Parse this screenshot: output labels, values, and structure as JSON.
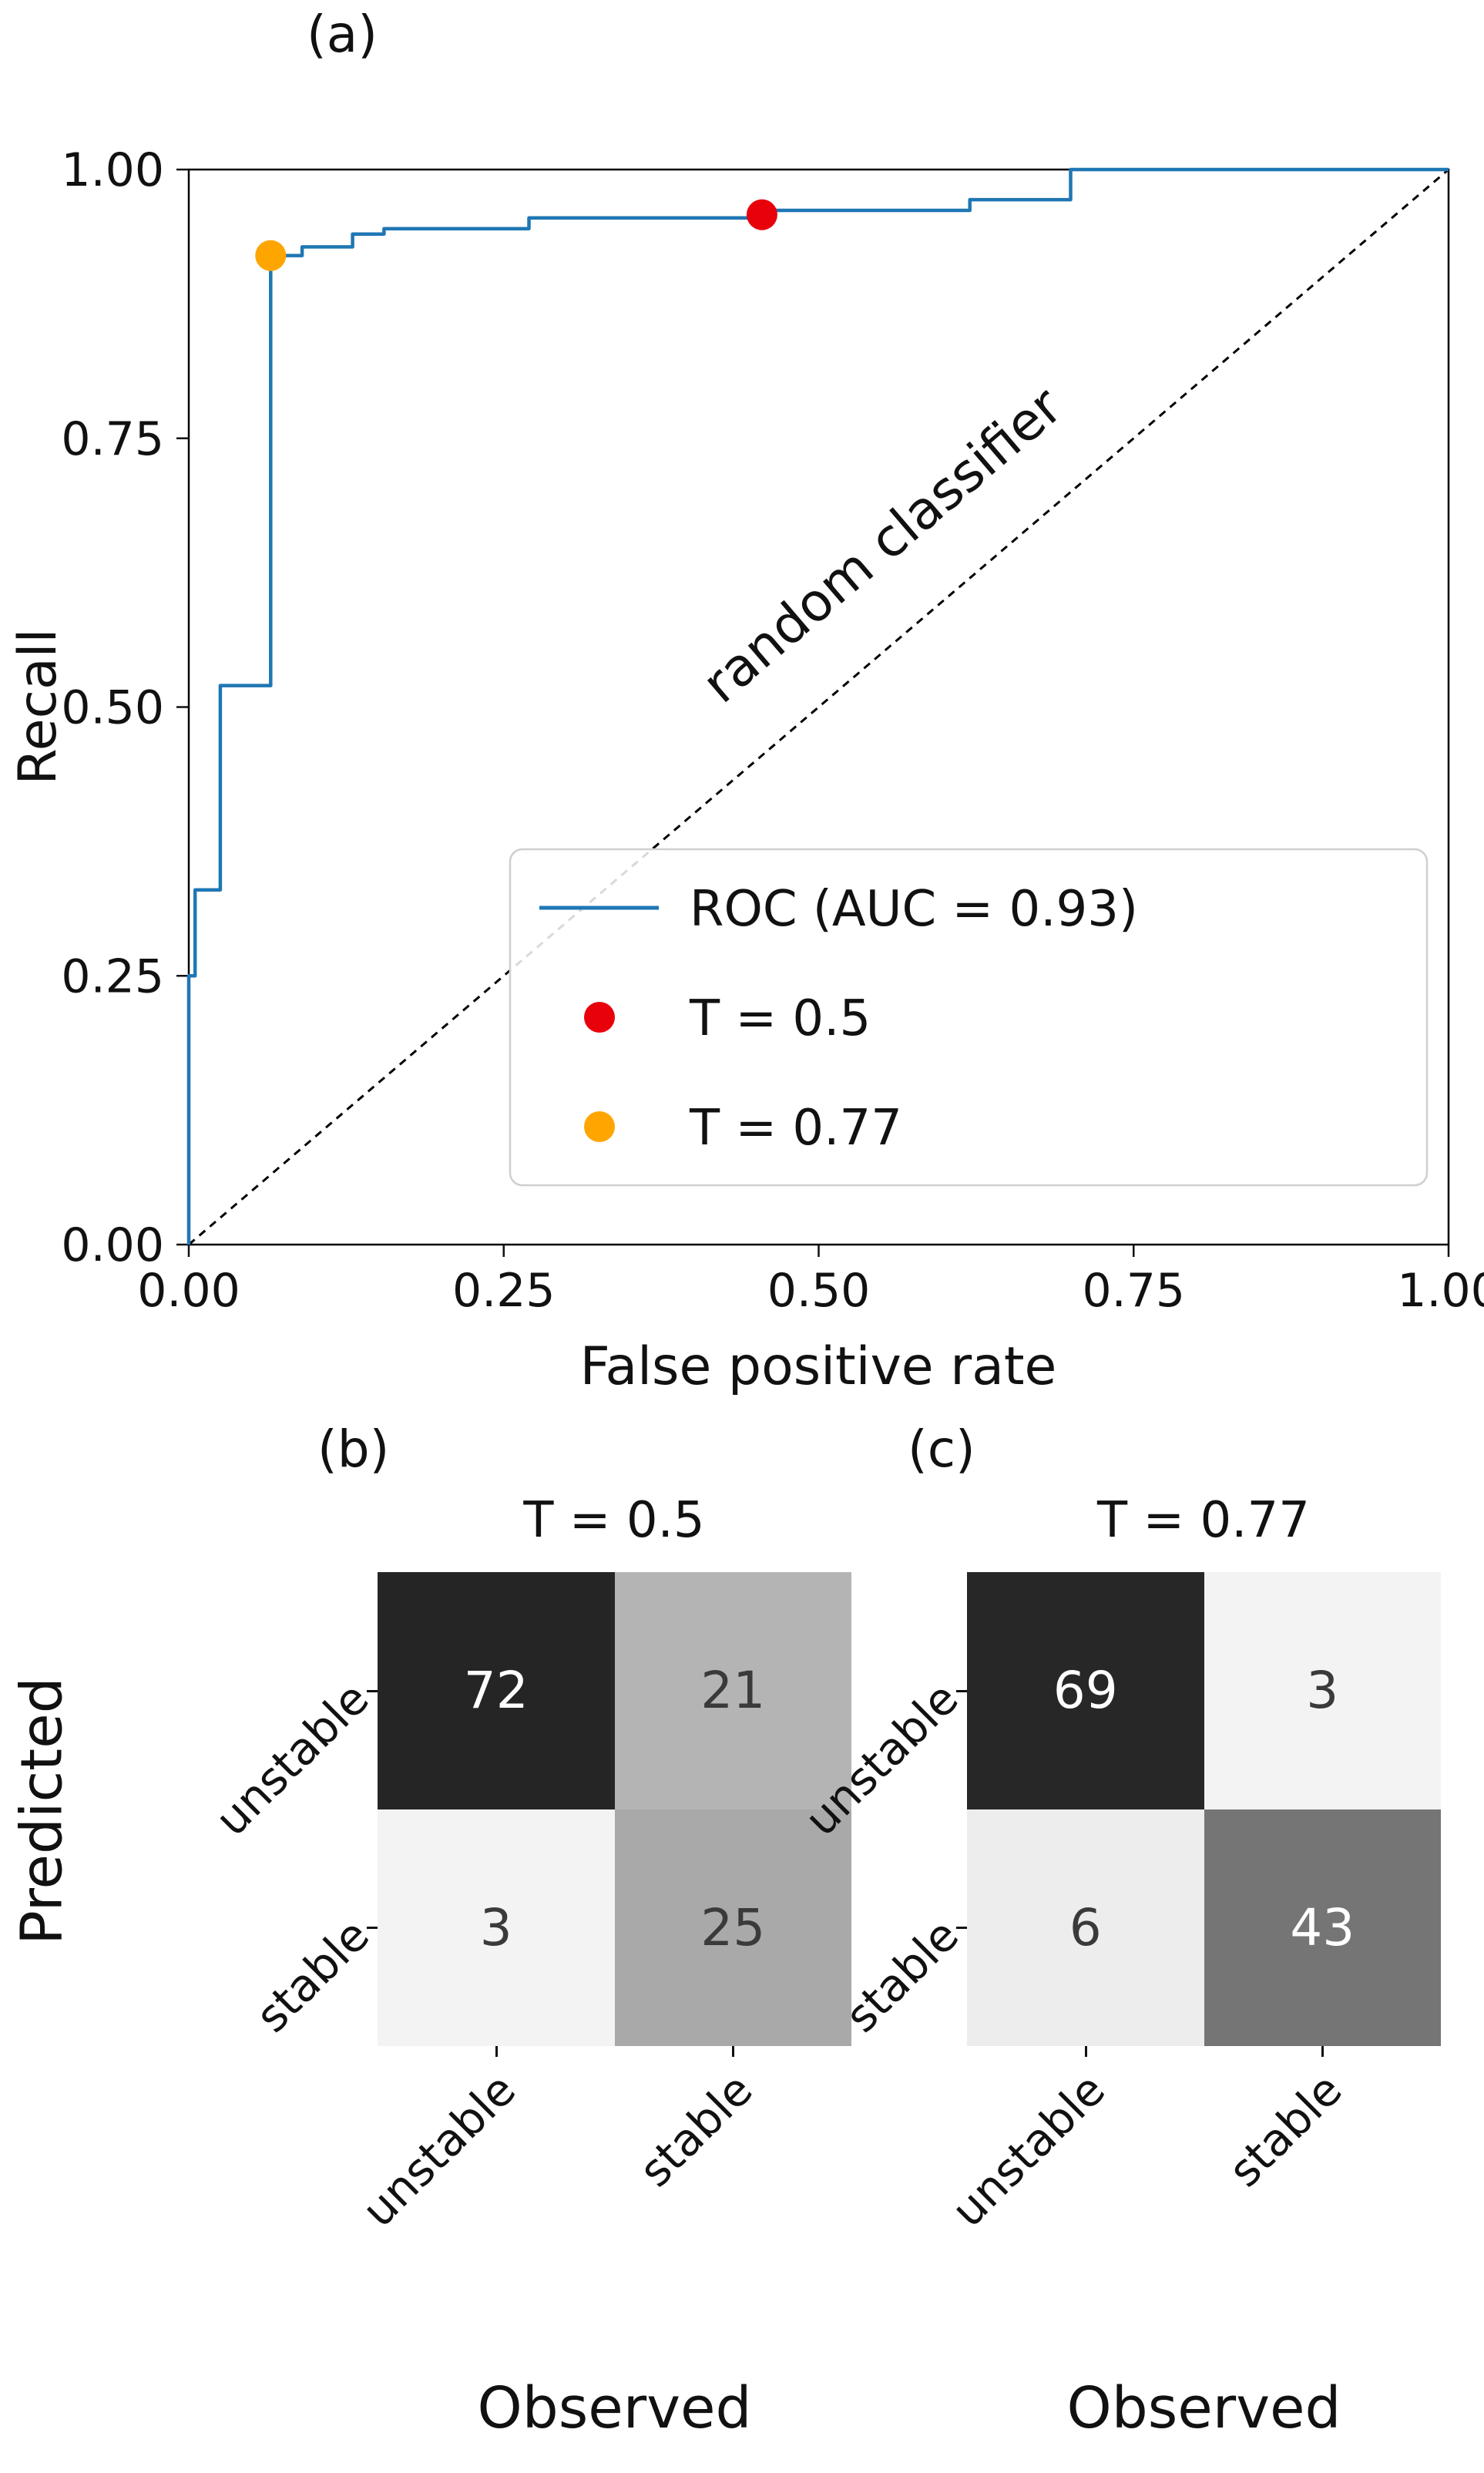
{
  "panels": {
    "a": {
      "label": "(a)"
    },
    "b": {
      "label": "(b)"
    },
    "c": {
      "label": "(c)"
    }
  },
  "labels": {
    "predicted": "Predicted",
    "observed": "Observed"
  },
  "chart_data": [
    {
      "type": "line",
      "title": "",
      "xlabel": "False positive rate",
      "ylabel": "Recall",
      "xlim": [
        0,
        1
      ],
      "ylim": [
        0,
        1
      ],
      "grid": false,
      "xticks": [
        "0.00",
        "0.25",
        "0.50",
        "0.75",
        "1.00"
      ],
      "yticks": [
        "0.00",
        "0.25",
        "0.50",
        "0.75",
        "1.00"
      ],
      "annotation": "random classifier",
      "diagonal": {
        "style": "dashed",
        "from": [
          0,
          0
        ],
        "to": [
          1,
          1
        ]
      },
      "series": [
        {
          "name": "ROC (AUC = 0.93)",
          "color": "#1f77b4",
          "points": [
            [
              0.0,
              0.0
            ],
            [
              0.0,
              0.25
            ],
            [
              0.005,
              0.25
            ],
            [
              0.005,
              0.33
            ],
            [
              0.025,
              0.33
            ],
            [
              0.025,
              0.52
            ],
            [
              0.065,
              0.52
            ],
            [
              0.065,
              0.92
            ],
            [
              0.09,
              0.92
            ],
            [
              0.09,
              0.928
            ],
            [
              0.13,
              0.928
            ],
            [
              0.13,
              0.94
            ],
            [
              0.155,
              0.94
            ],
            [
              0.155,
              0.945
            ],
            [
              0.27,
              0.945
            ],
            [
              0.27,
              0.955
            ],
            [
              0.46,
              0.955
            ],
            [
              0.46,
              0.962
            ],
            [
              0.62,
              0.962
            ],
            [
              0.62,
              0.972
            ],
            [
              0.7,
              0.972
            ],
            [
              0.7,
              1.0
            ],
            [
              1.0,
              1.0
            ]
          ]
        }
      ],
      "markers": [
        {
          "name": "T = 0.5",
          "color": "#e8000b",
          "x": 0.455,
          "y": 0.958
        },
        {
          "name": "T = 0.77",
          "color": "#ffa500",
          "x": 0.065,
          "y": 0.92
        }
      ],
      "legend": {
        "position": "lower right",
        "entries": [
          "ROC (AUC = 0.93)",
          "T = 0.5",
          "T = 0.77"
        ]
      }
    },
    {
      "type": "heatmap",
      "title": "T = 0.5",
      "xlabel": "Observed",
      "ylabel": "Predicted",
      "categories": [
        "unstable",
        "stable"
      ],
      "values": [
        [
          72,
          21
        ],
        [
          3,
          25
        ]
      ],
      "cell_colors": [
        [
          "#252525",
          "#b4b4b4"
        ],
        [
          "#f3f3f3",
          "#a9a9a9"
        ]
      ],
      "text_colors": [
        [
          "#ffffff",
          "#3a3a3a"
        ],
        [
          "#3a3a3a",
          "#3a3a3a"
        ]
      ]
    },
    {
      "type": "heatmap",
      "title": "T = 0.77",
      "xlabel": "Observed",
      "ylabel": "Predicted",
      "categories": [
        "unstable",
        "stable"
      ],
      "values": [
        [
          69,
          3
        ],
        [
          6,
          43
        ]
      ],
      "cell_colors": [
        [
          "#272727",
          "#f3f3f3"
        ],
        [
          "#ededed",
          "#757575"
        ]
      ],
      "text_colors": [
        [
          "#ffffff",
          "#3a3a3a"
        ],
        [
          "#3a3a3a",
          "#ffffff"
        ]
      ]
    }
  ]
}
